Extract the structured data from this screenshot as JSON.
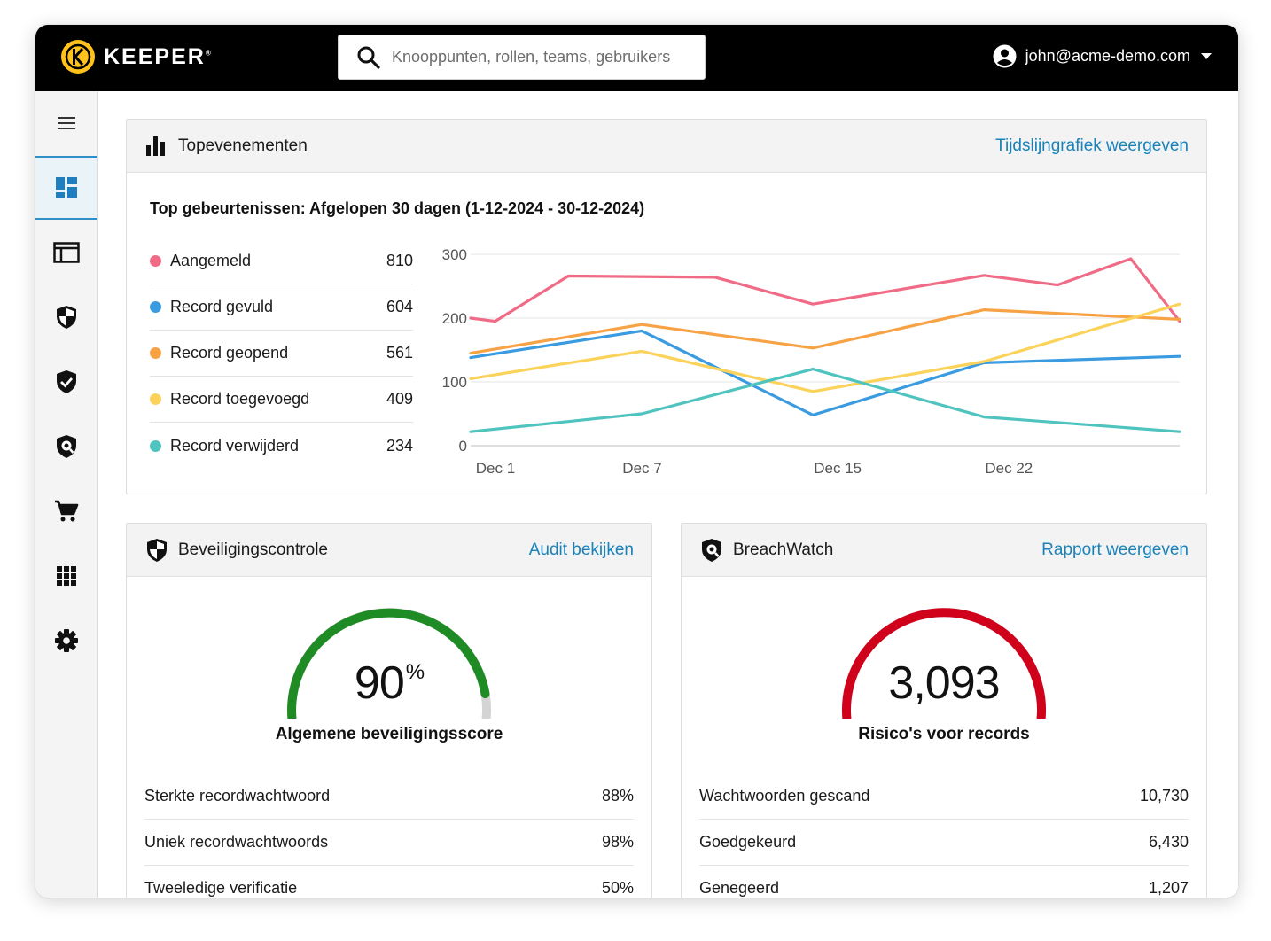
{
  "header": {
    "logo_text": "KEEPER",
    "logo_mark": "®",
    "search_placeholder": "Knooppunten, rollen, teams, gebruikers",
    "account_email": "john@acme-demo.com"
  },
  "sidebar": {
    "items": [
      {
        "icon": "menu-icon",
        "active": false
      },
      {
        "icon": "dashboard-icon",
        "active": true
      },
      {
        "icon": "admin-console-icon",
        "active": false
      },
      {
        "icon": "security-shield-icon",
        "active": false
      },
      {
        "icon": "compliance-shield-check-icon",
        "active": false
      },
      {
        "icon": "breachwatch-shield-icon",
        "active": false
      },
      {
        "icon": "cart-icon",
        "active": false
      },
      {
        "icon": "apps-grid-icon",
        "active": false
      },
      {
        "icon": "gear-icon",
        "active": false
      }
    ]
  },
  "top_events": {
    "title": "Topevenementen",
    "link": "Tijdslijngrafiek weergeven",
    "subtitle": "Top gebeurtenissen: Afgelopen 30 dagen (1-12-2024 - 30-12-2024)",
    "legend": [
      {
        "name": "Aangemeld",
        "value": "810",
        "color": "#f06b86"
      },
      {
        "name": "Record gevuld",
        "value": "604",
        "color": "#3a9be0"
      },
      {
        "name": "Record geopend",
        "value": "561",
        "color": "#f6a245"
      },
      {
        "name": "Record toegevoegd",
        "value": "409",
        "color": "#fbd25a"
      },
      {
        "name": "Record verwijderd",
        "value": "234",
        "color": "#4fc4bf"
      }
    ]
  },
  "chart_data": {
    "type": "line",
    "x": [
      1,
      2,
      5,
      8,
      11,
      15,
      18,
      22,
      25,
      28,
      30
    ],
    "x_tick_values": [
      1,
      7,
      15,
      22
    ],
    "x_tick_labels": [
      "Dec 1",
      "Dec 7",
      "Dec 15",
      "Dec 22"
    ],
    "xlim": [
      1,
      30
    ],
    "ylim": [
      0,
      300
    ],
    "y_ticks": [
      0,
      100,
      200,
      300
    ],
    "grid": true,
    "series": [
      {
        "name": "Aangemeld",
        "color": "#f06b86",
        "points": [
          [
            1,
            200
          ],
          [
            2,
            195
          ],
          [
            5,
            266
          ],
          [
            11,
            264
          ],
          [
            15,
            222
          ],
          [
            22,
            267
          ],
          [
            25,
            252
          ],
          [
            28,
            293
          ],
          [
            30,
            195
          ]
        ]
      },
      {
        "name": "Record gevuld",
        "color": "#3a9be0",
        "points": [
          [
            1,
            138
          ],
          [
            8,
            180
          ],
          [
            15,
            48
          ],
          [
            22,
            130
          ],
          [
            30,
            140
          ]
        ]
      },
      {
        "name": "Record geopend",
        "color": "#f6a245",
        "points": [
          [
            1,
            145
          ],
          [
            8,
            190
          ],
          [
            15,
            153
          ],
          [
            22,
            213
          ],
          [
            30,
            198
          ]
        ]
      },
      {
        "name": "Record toegevoegd",
        "color": "#fbd25a",
        "points": [
          [
            1,
            105
          ],
          [
            8,
            148
          ],
          [
            15,
            85
          ],
          [
            22,
            132
          ],
          [
            30,
            222
          ]
        ]
      },
      {
        "name": "Record verwijderd",
        "color": "#4fc4bf",
        "points": [
          [
            1,
            22
          ],
          [
            8,
            50
          ],
          [
            15,
            120
          ],
          [
            22,
            45
          ],
          [
            30,
            22
          ]
        ]
      }
    ]
  },
  "security_audit": {
    "title": "Beveiligingscontrole",
    "link": "Audit bekijken",
    "score": "90",
    "score_unit": "%",
    "score_fraction": 0.9,
    "gauge_color": "#1e8b24",
    "score_label": "Algemene beveiligingsscore",
    "stats": [
      {
        "label": "Sterkte recordwachtwoord",
        "value": "88%"
      },
      {
        "label": "Uniek recordwachtwoords",
        "value": "98%"
      },
      {
        "label": "Tweeledige verificatie",
        "value": "50%"
      }
    ]
  },
  "breachwatch": {
    "title": "BreachWatch",
    "link": "Rapport weergeven",
    "count": "3,093",
    "gauge_fraction": 1.0,
    "gauge_color": "#d0021b",
    "count_label": "Risico's voor records",
    "stats": [
      {
        "label": "Wachtwoorden gescand",
        "value": "10,730"
      },
      {
        "label": "Goedgekeurd",
        "value": "6,430"
      },
      {
        "label": "Genegeerd",
        "value": "1,207"
      }
    ]
  }
}
